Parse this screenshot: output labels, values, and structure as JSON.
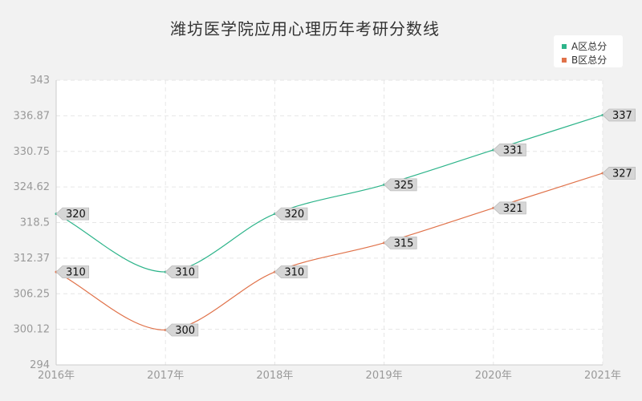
{
  "chart_data": {
    "type": "line",
    "title": "潍坊医学院应用心理历年考研分数线",
    "categories": [
      "2016年",
      "2017年",
      "2018年",
      "2019年",
      "2020年",
      "2021年"
    ],
    "series": [
      {
        "name": "A区总分",
        "color": "#2db48a",
        "values": [
          320,
          310,
          320,
          325,
          331,
          337
        ]
      },
      {
        "name": "B区总分",
        "color": "#e0724a",
        "values": [
          310,
          300,
          310,
          315,
          321,
          327
        ]
      }
    ],
    "ylim": [
      294,
      343
    ],
    "yticks": [
      "294",
      "300.12",
      "306.25",
      "312.37",
      "318.5",
      "324.62",
      "330.75",
      "336.87",
      "343"
    ],
    "grid": true,
    "legend_position": "top-right",
    "xlabel": "",
    "ylabel": ""
  }
}
